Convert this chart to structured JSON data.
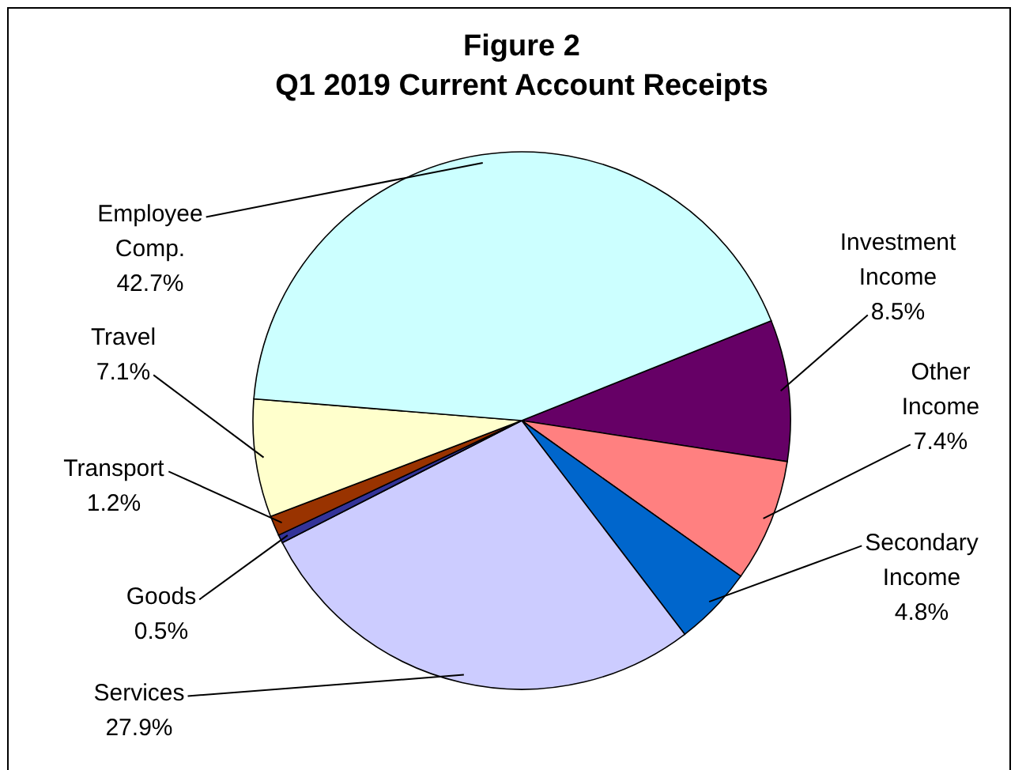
{
  "chart_data": {
    "type": "pie",
    "title": [
      "Figure 2",
      "Q1 2019 Current Account Receipts"
    ],
    "categories": [
      "Investment Income",
      "Other Income",
      "Secondary Income",
      "Services",
      "Goods",
      "Transport",
      "Travel",
      "Employee Comp."
    ],
    "values": [
      8.5,
      7.4,
      4.8,
      27.9,
      0.5,
      1.2,
      7.1,
      42.7
    ],
    "value_labels": [
      "8.5%",
      "7.4%",
      "4.8%",
      "27.9%",
      "0.5%",
      "1.2%",
      "7.1%",
      "42.7%"
    ],
    "colors": [
      "#660066",
      "#ff8080",
      "#0066cc",
      "#ccccff",
      "#333399",
      "#993300",
      "#ffffcc",
      "#ccffff"
    ],
    "legend": false
  }
}
